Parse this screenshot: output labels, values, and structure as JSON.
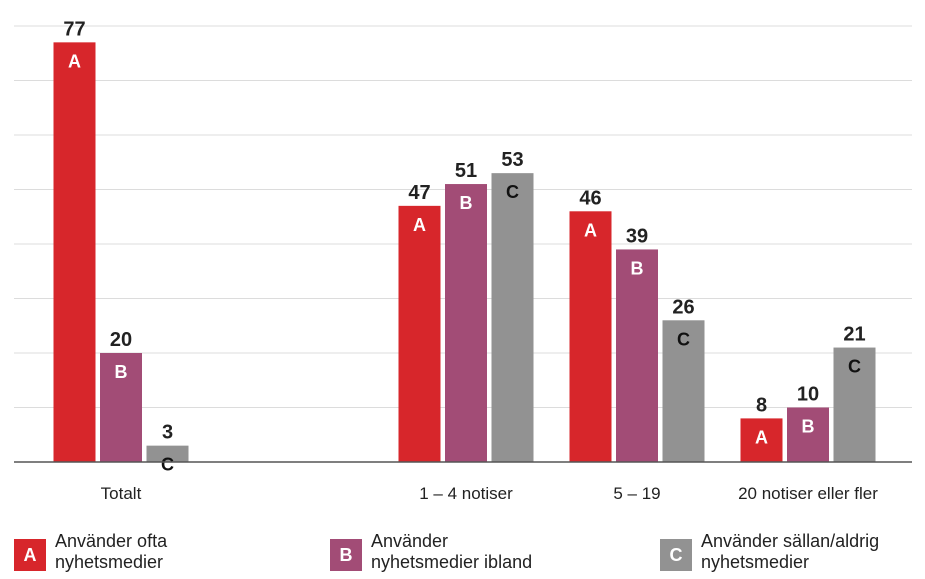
{
  "chart_data": {
    "type": "bar",
    "categories": [
      "Totalt",
      "1 – 4 notiser",
      "5 – 19",
      "20 notiser eller fler"
    ],
    "series": [
      {
        "key": "A",
        "name": "Använder ofta nyhetsmedier",
        "color": "#d7262b",
        "values": [
          77,
          47,
          46,
          8
        ]
      },
      {
        "key": "B",
        "name": "Använder nyhetsmedier ibland",
        "color": "#a24c76",
        "values": [
          20,
          51,
          39,
          10
        ]
      },
      {
        "key": "C",
        "name": "Använder sällan/aldrig nyhetsmedier",
        "color": "#929292",
        "values": [
          3,
          53,
          26,
          21
        ]
      }
    ],
    "ylim": [
      0,
      80
    ],
    "ygrid_step": 10,
    "grid": true,
    "legend_position": "bottom"
  },
  "legend": [
    {
      "key": "A",
      "line1": "Använder ofta",
      "line2": "nyhetsmedier",
      "color": "#d7262b"
    },
    {
      "key": "B",
      "line1": "Använder",
      "line2": "nyhetsmedier ibland",
      "color": "#a24c76"
    },
    {
      "key": "C",
      "line1": "Använder sällan/aldrig",
      "line2": "nyhetsmedier",
      "color": "#929292"
    }
  ]
}
